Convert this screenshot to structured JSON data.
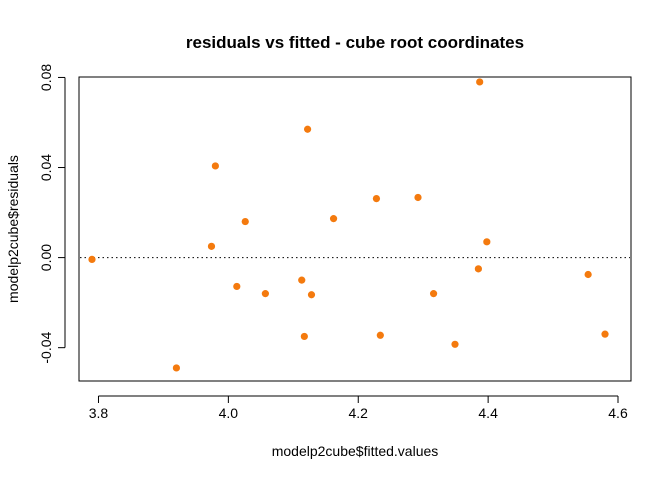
{
  "chart_data": {
    "type": "scatter",
    "title": "residuals vs fitted - cube root coordinates",
    "xlabel": "modelp2cube$fitted.values",
    "ylabel": "modelp2cube$residuals",
    "xlim": [
      3.77,
      4.62
    ],
    "ylim": [
      -0.0548,
      0.0802
    ],
    "xticks": [
      3.8,
      4.0,
      4.2,
      4.4,
      4.6
    ],
    "xtick_labels": [
      "3.8",
      "4.0",
      "4.2",
      "4.4",
      "4.6"
    ],
    "yticks": [
      -0.04,
      0.0,
      0.04,
      0.08
    ],
    "ytick_labels": [
      "-0.04",
      "0.00",
      "0.04",
      "0.08"
    ],
    "reference_line": {
      "y": 0,
      "style": "dotted"
    },
    "grid": false,
    "point_color": "#F47A0E",
    "points": [
      {
        "x": 3.79,
        "y": -0.0008
      },
      {
        "x": 3.92,
        "y": -0.049
      },
      {
        "x": 3.974,
        "y": 0.005
      },
      {
        "x": 3.98,
        "y": 0.0407
      },
      {
        "x": 4.013,
        "y": -0.0128
      },
      {
        "x": 4.026,
        "y": 0.016
      },
      {
        "x": 4.057,
        "y": -0.016
      },
      {
        "x": 4.113,
        "y": -0.01
      },
      {
        "x": 4.117,
        "y": -0.035
      },
      {
        "x": 4.122,
        "y": 0.057
      },
      {
        "x": 4.128,
        "y": -0.0165
      },
      {
        "x": 4.162,
        "y": 0.0173
      },
      {
        "x": 4.228,
        "y": 0.0262
      },
      {
        "x": 4.234,
        "y": -0.0345
      },
      {
        "x": 4.292,
        "y": 0.0267
      },
      {
        "x": 4.316,
        "y": -0.016
      },
      {
        "x": 4.349,
        "y": -0.0385
      },
      {
        "x": 4.385,
        "y": -0.005
      },
      {
        "x": 4.387,
        "y": 0.078
      },
      {
        "x": 4.398,
        "y": 0.007
      },
      {
        "x": 4.554,
        "y": -0.0075
      },
      {
        "x": 4.58,
        "y": -0.034
      }
    ]
  }
}
